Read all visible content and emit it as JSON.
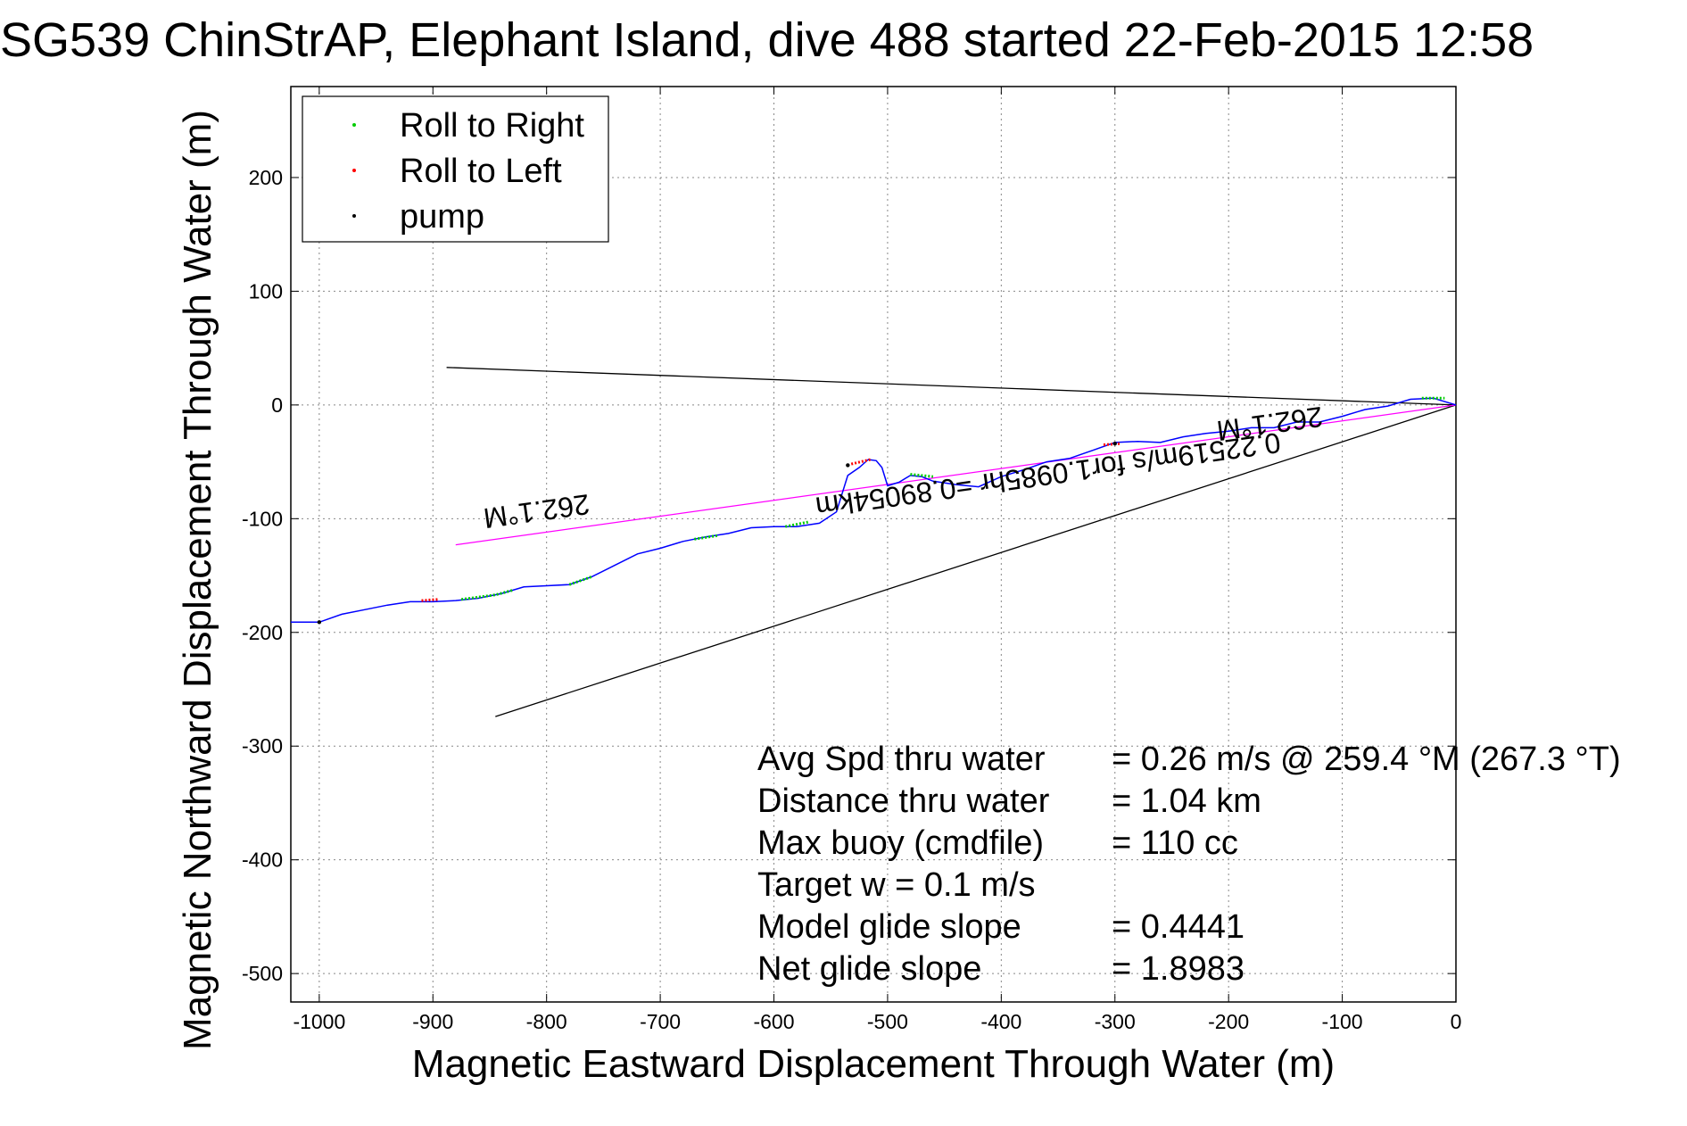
{
  "chart_data": {
    "type": "line",
    "title": "SG539 ChinStrAP, Elephant Island, dive 488 started 22-Feb-2015 12:58",
    "xlabel": "Magnetic Eastward Displacement Through Water (m)",
    "ylabel": "Magnetic Northward Displacement Through Water (m)",
    "xlim": [
      -1025,
      0
    ],
    "ylim": [
      -525,
      280
    ],
    "xticks": [
      -1000,
      -900,
      -800,
      -700,
      -600,
      -500,
      -400,
      -300,
      -200,
      -100,
      0
    ],
    "yticks": [
      -500,
      -400,
      -300,
      -200,
      -100,
      0,
      100,
      200
    ],
    "grid": true,
    "legend": {
      "position": "top-left",
      "entries": [
        {
          "label": "Roll to Right",
          "color": "#00cc00"
        },
        {
          "label": "Roll to Left",
          "color": "#ff0000"
        },
        {
          "label": "pump",
          "color": "#000000"
        }
      ]
    },
    "track": {
      "color": "#0000ff",
      "x": [
        -1025,
        -1000,
        -980,
        -960,
        -940,
        -920,
        -900,
        -880,
        -860,
        -840,
        -820,
        -800,
        -780,
        -760,
        -740,
        -720,
        -700,
        -680,
        -660,
        -640,
        -620,
        -600,
        -580,
        -560,
        -545,
        -535,
        -525,
        -517,
        -510,
        -505,
        -500,
        -490,
        -480,
        -470,
        -460,
        -440,
        -420,
        -400,
        -380,
        -360,
        -340,
        -320,
        -300,
        -280,
        -260,
        -240,
        -220,
        -200,
        -180,
        -160,
        -140,
        -120,
        -100,
        -80,
        -60,
        -40,
        -20,
        0
      ],
      "y": [
        -191,
        -191,
        -184,
        -180,
        -176,
        -173,
        -173,
        -172,
        -170,
        -166,
        -160,
        -159,
        -158,
        -151,
        -141,
        -131,
        -126,
        -120,
        -116,
        -113,
        -108,
        -107,
        -107,
        -104,
        -94,
        -62,
        -55,
        -48,
        -49,
        -55,
        -71,
        -68,
        -62,
        -63,
        -67,
        -70,
        -72,
        -63,
        -57,
        -50,
        -47,
        -40,
        -33,
        -32,
        -33,
        -28,
        -25,
        -23,
        -20,
        -20,
        -15,
        -15,
        -10,
        -4,
        -1,
        5,
        6,
        0
      ]
    },
    "roll_right_segments": [
      {
        "x": [
          -875,
          -845,
          -830
        ],
        "y": [
          -171,
          -167,
          -163
        ]
      },
      {
        "x": [
          -780,
          -760
        ],
        "y": [
          -158,
          -151
        ]
      },
      {
        "x": [
          -670,
          -650
        ],
        "y": [
          -118,
          -115
        ]
      },
      {
        "x": [
          -590,
          -570
        ],
        "y": [
          -107,
          -103
        ]
      },
      {
        "x": [
          -480,
          -460
        ],
        "y": [
          -61,
          -63
        ]
      },
      {
        "x": [
          -30,
          -10
        ],
        "y": [
          6,
          6
        ]
      }
    ],
    "roll_left_segments": [
      {
        "x": [
          -910,
          -895
        ],
        "y": [
          -172,
          -171
        ]
      },
      {
        "x": [
          -532,
          -515
        ],
        "y": [
          -52,
          -48
        ]
      },
      {
        "x": [
          -310,
          -295
        ],
        "y": [
          -35,
          -34
        ]
      }
    ],
    "pump_points": [
      {
        "x": -1000,
        "y": -191
      },
      {
        "x": -535,
        "y": -53
      },
      {
        "x": -300,
        "y": -34
      }
    ],
    "heading_line": {
      "color": "#ff00ff",
      "x": [
        -880,
        0
      ],
      "y": [
        -123,
        0
      ]
    },
    "reference_lines": [
      {
        "color": "#000000",
        "x": [
          -888,
          0
        ],
        "y": [
          33,
          0
        ]
      },
      {
        "color": "#000000",
        "x": [
          -845,
          0
        ],
        "y": [
          -274,
          0
        ]
      }
    ],
    "annotations": [
      {
        "text": "262.1°M",
        "x": -810,
        "y": -85,
        "rotate": 172
      },
      {
        "text": "0.22519m/s for1.0985hr =0.89054km",
        "x": -360,
        "y": -53,
        "rotate": 172
      },
      {
        "text": "262.1°M",
        "x": -165,
        "y": -8,
        "rotate": 172
      }
    ]
  },
  "stats": [
    {
      "label": "Avg Spd thru water",
      "value": "=  0.26 m/s @ 259.4 °M (267.3 °T)"
    },
    {
      "label": "Distance thru water",
      "value": "=  1.04 km"
    },
    {
      "label": "Max buoy (cmdfile)",
      "value": "= 110 cc"
    },
    {
      "label": "Target w    = 0.1 m/s",
      "value": ""
    },
    {
      "label": "Model glide slope",
      "value": "= 0.4441"
    },
    {
      "label": "Net glide slope",
      "value": "= 1.8983"
    }
  ]
}
